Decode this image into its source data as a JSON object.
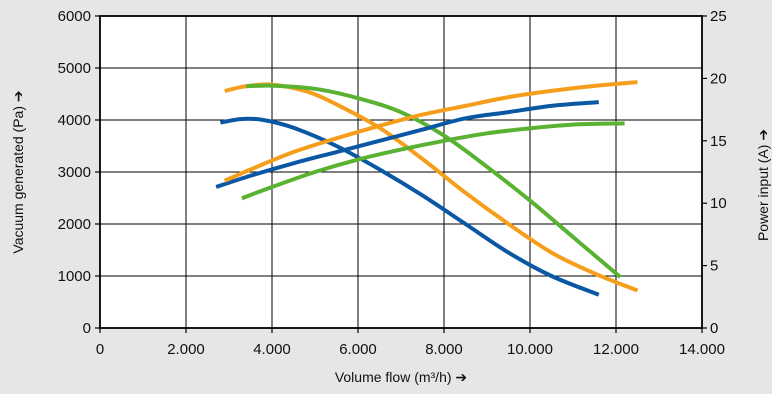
{
  "colors": {
    "background": "#e6e6e6",
    "plot_background": "#ffffff",
    "grid": "#000000",
    "blue": "#0a57a4",
    "orange": "#f59e1b",
    "green": "#5ab232"
  },
  "chart_data": {
    "type": "line",
    "grid": true,
    "legend": "none",
    "x_axis": {
      "label": "Volume flow (m³/h) ➔",
      "min": 0,
      "max": 14000,
      "ticks": [
        0,
        2000,
        4000,
        6000,
        8000,
        10000,
        12000,
        14000
      ],
      "tick_labels": [
        "0",
        "2.000",
        "4.000",
        "6.000",
        "8.000",
        "10.000",
        "12.000",
        "14.000"
      ]
    },
    "y_axis_left": {
      "label": "Vacuum generated (Pa) ➔",
      "min": 0,
      "max": 6000,
      "ticks": [
        0,
        1000,
        2000,
        3000,
        4000,
        5000,
        6000
      ],
      "tick_labels": [
        "0",
        "1000",
        "2000",
        "3000",
        "4000",
        "5000",
        "6000"
      ]
    },
    "y_axis_right": {
      "label": "Power input (A) ➔",
      "min": 0,
      "max": 25,
      "ticks": [
        0,
        5,
        10,
        15,
        20,
        25
      ],
      "tick_labels": [
        "0",
        "5",
        "10",
        "15",
        "20",
        "25"
      ]
    },
    "series": [
      {
        "color": "blue",
        "axis": "left",
        "kind": "vacuum",
        "x": [
          2800,
          3300,
          3800,
          4500,
          5500,
          6500,
          7500,
          8500,
          9500,
          10500,
          11600
        ],
        "y": [
          3950,
          4020,
          4000,
          3850,
          3500,
          3050,
          2550,
          2000,
          1450,
          1000,
          640
        ]
      },
      {
        "color": "orange",
        "axis": "left",
        "kind": "vacuum",
        "x": [
          2900,
          3400,
          4000,
          4800,
          5500,
          6500,
          7500,
          8500,
          9500,
          10500,
          11500,
          12500
        ],
        "y": [
          4560,
          4650,
          4680,
          4550,
          4300,
          3850,
          3250,
          2600,
          2000,
          1450,
          1050,
          720
        ]
      },
      {
        "color": "green",
        "axis": "left",
        "kind": "vacuum",
        "x": [
          3400,
          4000,
          5000,
          6000,
          7000,
          8000,
          9000,
          10000,
          11000,
          12100
        ],
        "y": [
          4650,
          4660,
          4600,
          4420,
          4150,
          3700,
          3100,
          2450,
          1750,
          980
        ]
      },
      {
        "color": "blue",
        "axis": "right",
        "kind": "power",
        "x": [
          2700,
          3500,
          4500,
          5500,
          6500,
          7500,
          8500,
          9500,
          10500,
          11600
        ],
        "y": [
          11.3,
          12.2,
          13.2,
          14.1,
          15.0,
          15.9,
          16.8,
          17.3,
          17.8,
          18.1
        ]
      },
      {
        "color": "orange",
        "axis": "right",
        "kind": "power",
        "x": [
          2900,
          3500,
          4500,
          5500,
          6500,
          7500,
          8500,
          9500,
          10500,
          11500,
          12500
        ],
        "y": [
          11.8,
          12.7,
          14.1,
          15.2,
          16.2,
          17.1,
          17.8,
          18.5,
          19.0,
          19.4,
          19.7
        ]
      },
      {
        "color": "green",
        "axis": "right",
        "kind": "power",
        "x": [
          3300,
          4000,
          5000,
          6000,
          7000,
          8000,
          9000,
          10000,
          11000,
          12200
        ],
        "y": [
          10.4,
          11.3,
          12.5,
          13.5,
          14.3,
          15.0,
          15.6,
          16.0,
          16.3,
          16.4
        ]
      }
    ]
  }
}
